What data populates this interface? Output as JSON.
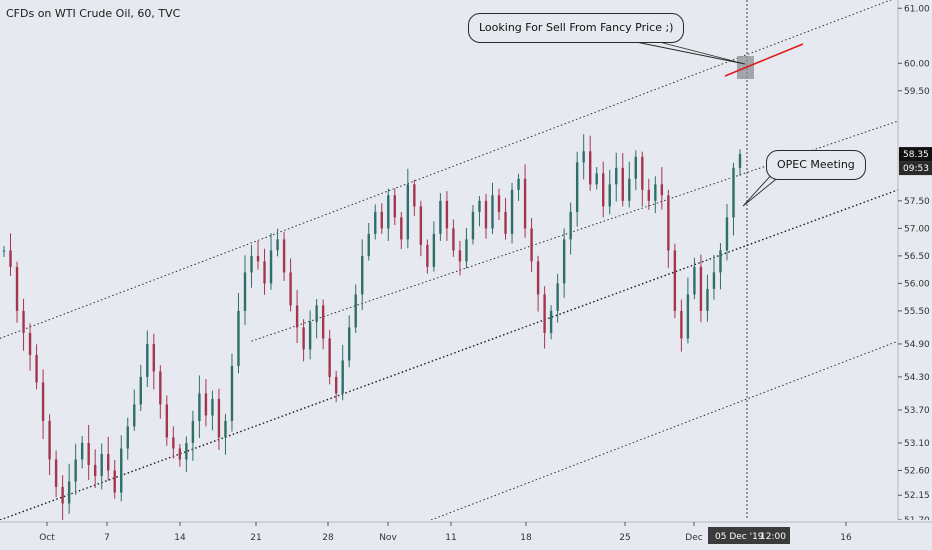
{
  "chart_title": "CFDs on WTI Crude Oil, 60, TVC",
  "chart_data": {
    "type": "line",
    "title": "CFDs on WTI Crude Oil, 60, TVC",
    "xlabel": "",
    "ylabel": "",
    "ylim": [
      51.7,
      61.15
    ],
    "y_ticks": [
      "61.00",
      "60.00",
      "59.50",
      "58.35",
      "57.50",
      "57.00",
      "56.50",
      "56.00",
      "55.50",
      "54.90",
      "54.30",
      "53.70",
      "53.10",
      "52.60",
      "52.15",
      "51.70"
    ],
    "x_ticks": [
      "Oct",
      "7",
      "14",
      "21",
      "28",
      "Nov",
      "11",
      "18",
      "25",
      "Dec",
      "16"
    ],
    "x_ticks_extra": [
      "05 Dec '19",
      "12:00"
    ],
    "price_label": "58.35",
    "countdown_label": "09:53",
    "series": [
      {
        "values": [
          56.6,
          56.3,
          55.5,
          55.1,
          54.7,
          54.2,
          53.5,
          52.8,
          52.3,
          52.0,
          52.4,
          52.8,
          53.1,
          52.7,
          52.5,
          52.9,
          52.6,
          52.2,
          53.0,
          53.4,
          53.8,
          54.3,
          54.9,
          54.4,
          53.8,
          53.2,
          53.0,
          52.8,
          53.1,
          53.5,
          54.0,
          53.6,
          53.9,
          53.2,
          53.5,
          54.5,
          55.5,
          56.2,
          56.5,
          56.4,
          56.0,
          56.6,
          56.8,
          56.2,
          55.6,
          55.2,
          54.8,
          55.3,
          55.6,
          55.0,
          54.3,
          54.0,
          54.6,
          55.2,
          55.8,
          56.5,
          56.9,
          57.3,
          57.0,
          57.6,
          57.2,
          56.8,
          57.8,
          57.4,
          56.7,
          56.3,
          56.9,
          57.5,
          57.0,
          56.6,
          56.4,
          56.8,
          57.3,
          57.5,
          57.0,
          57.6,
          57.3,
          56.9,
          57.7,
          57.9,
          57.0,
          56.4,
          55.8,
          55.1,
          55.5,
          56.0,
          56.8,
          57.3,
          58.2,
          58.4,
          57.8,
          58.0,
          57.4,
          57.8,
          58.1,
          57.5,
          57.9,
          58.3,
          57.7,
          57.5,
          57.8,
          57.6,
          56.6,
          55.5,
          55.0,
          55.8,
          56.3,
          55.5,
          55.9,
          56.2,
          56.6,
          57.2,
          58.1,
          58.35
        ]
      }
    ],
    "trendlines": [
      {
        "name": "upper-channel",
        "from": {
          "x": 0,
          "y": 55.0
        },
        "to": {
          "x": 1,
          "y": 61.2
        }
      },
      {
        "name": "mid-channel",
        "from": {
          "x": 0.28,
          "y": 54.95
        },
        "to": {
          "x": 1,
          "y": 58.95
        }
      },
      {
        "name": "lower-channel",
        "from": {
          "x": 0,
          "y": 51.7
        },
        "to": {
          "x": 1,
          "y": 57.7
        }
      },
      {
        "name": "outer-channel",
        "from": {
          "x": 0.48,
          "y": 51.7
        },
        "to": {
          "x": 1,
          "y": 54.95
        }
      }
    ],
    "annotations": [
      {
        "name": "sell-callout",
        "text": "Looking For Sell From Fancy Price ;)"
      },
      {
        "name": "opec-callout",
        "text": "OPEC Meeting"
      }
    ],
    "grid": false
  },
  "colors": {
    "background": "#e6e9ef",
    "candle_up": "#2e6f6a",
    "candle_down": "#a5354f",
    "trendline": "#1a1a1a",
    "red_target_line": "#e0191a",
    "price_tag": "#111111",
    "date_tag": "#3b3b3b"
  }
}
